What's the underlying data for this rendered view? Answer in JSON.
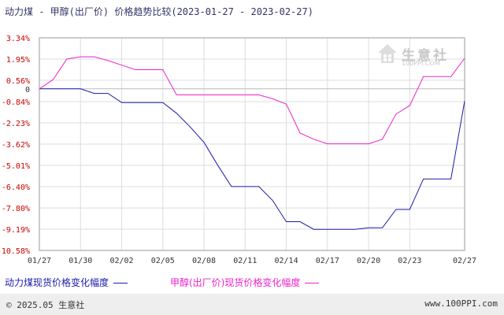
{
  "title": "动力煤 - 甲醇(出厂价) 价格趋势比较(2023-01-27 - 2023-02-27)",
  "watermark": {
    "text": "生意社",
    "url": "100PPI.COM"
  },
  "footer": {
    "copyright": "© 2025.05 生意社",
    "site": "www.100PPI.com"
  },
  "colors": {
    "series1": "#1a1aaa",
    "series2": "#ee22cc",
    "zero_line": "#bbbbbb",
    "grid": "#dddddd",
    "axis": "#999999",
    "label": "#cc0000"
  },
  "chart_data": {
    "type": "line",
    "title": "动力煤 - 甲醇(出厂价) 价格趋势比较(2023-01-27 - 2023-02-27)",
    "xlabel": "",
    "ylabel": "",
    "y_ticks": [
      "3.34%",
      "1.95%",
      "0.56%",
      "0",
      "-0.84%",
      "-2.23%",
      "-3.62%",
      "-5.01%",
      "-6.40%",
      "-7.80%",
      "-9.19%",
      "-10.58%"
    ],
    "y_tick_values": [
      3.34,
      1.95,
      0.56,
      0,
      -0.84,
      -2.23,
      -3.62,
      -5.01,
      -6.4,
      -7.8,
      -9.19,
      -10.58
    ],
    "ylim": [
      -10.58,
      3.34
    ],
    "x_ticks": [
      "01/27",
      "01/30",
      "02/02",
      "02/05",
      "02/08",
      "02/11",
      "02/14",
      "02/17",
      "02/20",
      "02/23",
      "02/27"
    ],
    "x": [
      "01/27",
      "01/28",
      "01/29",
      "01/30",
      "01/31",
      "02/01",
      "02/02",
      "02/03",
      "02/04",
      "02/05",
      "02/06",
      "02/07",
      "02/08",
      "02/09",
      "02/10",
      "02/11",
      "02/12",
      "02/13",
      "02/14",
      "02/15",
      "02/16",
      "02/17",
      "02/18",
      "02/19",
      "02/20",
      "02/21",
      "02/22",
      "02/23",
      "02/24",
      "02/25",
      "02/26",
      "02/27"
    ],
    "grid": true,
    "legend_position": "bottom",
    "series": [
      {
        "name": "动力煤现货价格变化幅度",
        "color": "#1a1aaa",
        "values": [
          0,
          0,
          0,
          0,
          -0.3,
          -0.3,
          -0.9,
          -0.9,
          -0.9,
          -0.9,
          -1.6,
          -2.5,
          -3.5,
          -5.0,
          -6.4,
          -6.4,
          -6.4,
          -7.3,
          -8.7,
          -8.7,
          -9.2,
          -9.2,
          -9.2,
          -9.2,
          -9.1,
          -9.1,
          -7.9,
          -7.9,
          -5.9,
          -5.9,
          -5.9,
          -0.8
        ]
      },
      {
        "name": "甲醇(出厂价)现货价格变化幅度",
        "color": "#ee22cc",
        "values": [
          0,
          0.6,
          1.95,
          2.1,
          2.1,
          1.85,
          1.55,
          1.25,
          1.25,
          1.25,
          -0.4,
          -0.4,
          -0.4,
          -0.4,
          -0.4,
          -0.4,
          -0.4,
          -0.65,
          -1.0,
          -2.9,
          -3.3,
          -3.6,
          -3.6,
          -3.6,
          -3.6,
          -3.3,
          -1.65,
          -1.1,
          0.8,
          0.8,
          0.8,
          2.0
        ]
      }
    ]
  }
}
